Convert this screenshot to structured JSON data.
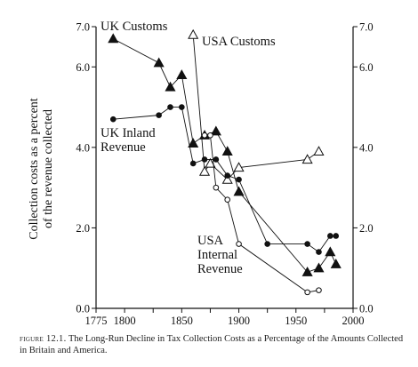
{
  "chart_data": {
    "type": "line",
    "title": "",
    "xlabel": "",
    "ylabel": "Collection costs as a percent of the revenue collected",
    "ylabel_lines": [
      "Collection costs as a percent",
      "of the revenue collected"
    ],
    "xlim": [
      1775,
      2000
    ],
    "ylim": [
      0,
      7
    ],
    "x_ticks": [
      1775,
      1800,
      1825,
      1850,
      1875,
      1900,
      1925,
      1950,
      1975,
      2000
    ],
    "x_tick_labels": [
      "1775",
      "1800",
      "",
      "1850",
      "",
      "1900",
      "",
      "1950",
      "",
      "2000"
    ],
    "y_ticks": [
      0,
      2,
      4,
      6,
      7
    ],
    "y_tick_labels": [
      "0.0",
      "2.0",
      "4.0",
      "6.0",
      "7.0"
    ],
    "grid": false,
    "series": [
      {
        "name": "UK Customs",
        "label_lines": [
          "UK Customs"
        ],
        "marker": "filled-triangle",
        "x": [
          1790,
          1830,
          1840,
          1850,
          1860,
          1870,
          1880,
          1890,
          1900,
          1960,
          1970,
          1980,
          1985
        ],
        "y": [
          6.7,
          6.1,
          5.5,
          5.8,
          4.1,
          4.3,
          4.4,
          3.9,
          2.9,
          0.9,
          1.0,
          1.4,
          1.1
        ]
      },
      {
        "name": "USA Customs",
        "label_lines": [
          "USA Customs"
        ],
        "marker": "open-triangle",
        "x": [
          1860,
          1870,
          1875,
          1890,
          1900,
          1960,
          1970
        ],
        "y": [
          6.8,
          3.4,
          3.6,
          3.2,
          3.5,
          3.7,
          3.9
        ]
      },
      {
        "name": "UK Inland Revenue",
        "label_lines": [
          "UK Inland",
          "Revenue"
        ],
        "marker": "filled-circle",
        "x": [
          1790,
          1830,
          1840,
          1850,
          1860,
          1870,
          1880,
          1890,
          1900,
          1925,
          1960,
          1970,
          1980,
          1985
        ],
        "y": [
          4.7,
          4.8,
          5.0,
          5.0,
          3.6,
          3.7,
          3.7,
          3.3,
          3.2,
          1.6,
          1.6,
          1.4,
          1.8,
          1.8
        ]
      },
      {
        "name": "USA Internal Revenue",
        "label_lines": [
          "USA",
          "Internal",
          "Revenue"
        ],
        "marker": "open-circle",
        "x": [
          1870,
          1875,
          1880,
          1890,
          1900,
          1960,
          1970
        ],
        "y": [
          4.3,
          4.3,
          3.0,
          2.7,
          1.6,
          0.4,
          0.45
        ]
      }
    ]
  },
  "caption": {
    "figure_label": "figure 12.1.",
    "text": "The Long-Run Decline in Tax Collection Costs as a Percentage of the Amounts Collected in Britain and America."
  }
}
